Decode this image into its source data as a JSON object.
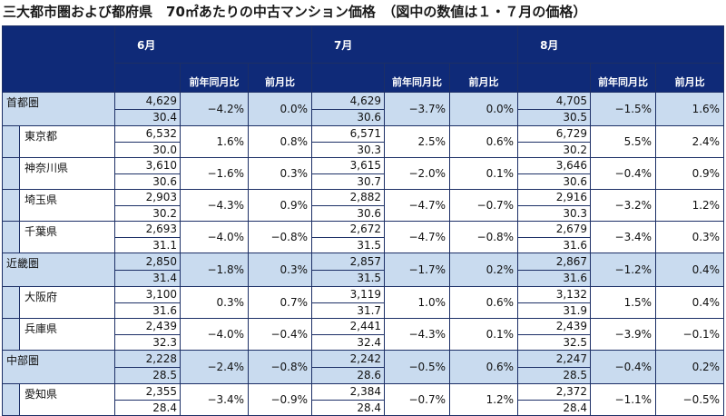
{
  "title": "三大都市圏および都府県　70㎡あたりの中古マンション価格　（図中の数値は１・７月の価格）",
  "months": [
    "6月",
    "7月",
    "8月"
  ],
  "sub_headers": {
    "yoy": "前年同月比",
    "mom": "前月比"
  },
  "rows": [
    {
      "name": "首都圏",
      "type": "region",
      "d": [
        {
          "price": "4,629",
          "age": "30.4",
          "yoy": "−4.2%",
          "mom": "0.0%"
        },
        {
          "price": "4,629",
          "age": "30.6",
          "yoy": "−3.7%",
          "mom": "0.0%"
        },
        {
          "price": "4,705",
          "age": "30.5",
          "yoy": "−1.5%",
          "mom": "1.6%"
        }
      ]
    },
    {
      "name": "東京都",
      "type": "sub",
      "d": [
        {
          "price": "6,532",
          "age": "30.0",
          "yoy": "1.6%",
          "mom": "0.8%"
        },
        {
          "price": "6,571",
          "age": "30.3",
          "yoy": "2.5%",
          "mom": "0.6%"
        },
        {
          "price": "6,729",
          "age": "30.2",
          "yoy": "5.5%",
          "mom": "2.4%"
        }
      ]
    },
    {
      "name": "神奈川県",
      "type": "sub",
      "d": [
        {
          "price": "3,610",
          "age": "30.6",
          "yoy": "−1.6%",
          "mom": "0.3%"
        },
        {
          "price": "3,615",
          "age": "30.7",
          "yoy": "−2.0%",
          "mom": "0.1%"
        },
        {
          "price": "3,646",
          "age": "30.6",
          "yoy": "−0.4%",
          "mom": "0.9%"
        }
      ]
    },
    {
      "name": "埼玉県",
      "type": "sub",
      "d": [
        {
          "price": "2,903",
          "age": "30.2",
          "yoy": "−4.3%",
          "mom": "0.9%"
        },
        {
          "price": "2,882",
          "age": "30.6",
          "yoy": "−4.7%",
          "mom": "−0.7%"
        },
        {
          "price": "2,916",
          "age": "30.3",
          "yoy": "−3.2%",
          "mom": "1.2%"
        }
      ]
    },
    {
      "name": "千葉県",
      "type": "sub",
      "d": [
        {
          "price": "2,693",
          "age": "31.1",
          "yoy": "−4.0%",
          "mom": "−0.8%"
        },
        {
          "price": "2,672",
          "age": "31.5",
          "yoy": "−4.7%",
          "mom": "−0.8%"
        },
        {
          "price": "2,679",
          "age": "31.6",
          "yoy": "−3.4%",
          "mom": "0.3%"
        }
      ]
    },
    {
      "name": "近畿圏",
      "type": "region",
      "d": [
        {
          "price": "2,850",
          "age": "31.4",
          "yoy": "−1.8%",
          "mom": "0.3%"
        },
        {
          "price": "2,857",
          "age": "31.5",
          "yoy": "−1.7%",
          "mom": "0.2%"
        },
        {
          "price": "2,867",
          "age": "31.6",
          "yoy": "−1.2%",
          "mom": "0.4%"
        }
      ]
    },
    {
      "name": "大阪府",
      "type": "sub",
      "d": [
        {
          "price": "3,100",
          "age": "31.6",
          "yoy": "0.3%",
          "mom": "0.7%"
        },
        {
          "price": "3,119",
          "age": "31.7",
          "yoy": "1.0%",
          "mom": "0.6%"
        },
        {
          "price": "3,132",
          "age": "31.9",
          "yoy": "1.5%",
          "mom": "0.4%"
        }
      ]
    },
    {
      "name": "兵庫県",
      "type": "sub",
      "d": [
        {
          "price": "2,439",
          "age": "32.3",
          "yoy": "−4.0%",
          "mom": "−0.4%"
        },
        {
          "price": "2,441",
          "age": "32.4",
          "yoy": "−4.3%",
          "mom": "0.1%"
        },
        {
          "price": "2,439",
          "age": "32.5",
          "yoy": "−3.9%",
          "mom": "−0.1%"
        }
      ]
    },
    {
      "name": "中部圏",
      "type": "region",
      "d": [
        {
          "price": "2,228",
          "age": "28.5",
          "yoy": "−2.4%",
          "mom": "−0.8%"
        },
        {
          "price": "2,242",
          "age": "28.6",
          "yoy": "−0.5%",
          "mom": "0.6%"
        },
        {
          "price": "2,247",
          "age": "28.5",
          "yoy": "−0.4%",
          "mom": "0.2%"
        }
      ]
    },
    {
      "name": "愛知県",
      "type": "sub",
      "d": [
        {
          "price": "2,355",
          "age": "28.4",
          "yoy": "−3.4%",
          "mom": "−0.9%"
        },
        {
          "price": "2,384",
          "age": "28.4",
          "yoy": "−0.7%",
          "mom": "1.2%"
        },
        {
          "price": "2,372",
          "age": "28.4",
          "yoy": "−1.1%",
          "mom": "−0.5%"
        }
      ]
    }
  ]
}
